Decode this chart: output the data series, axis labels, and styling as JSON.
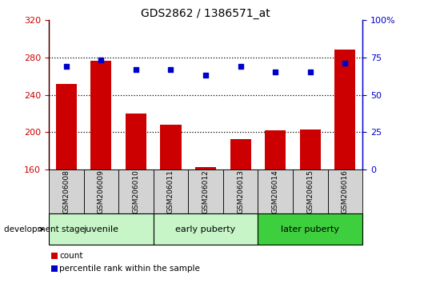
{
  "title": "GDS2862 / 1386571_at",
  "samples": [
    "GSM206008",
    "GSM206009",
    "GSM206010",
    "GSM206011",
    "GSM206012",
    "GSM206013",
    "GSM206014",
    "GSM206015",
    "GSM206016"
  ],
  "counts": [
    252,
    276,
    220,
    208,
    163,
    193,
    202,
    203,
    288
  ],
  "percentiles": [
    69,
    73,
    67,
    67,
    63,
    69,
    65,
    65,
    71
  ],
  "ylim_left": [
    160,
    320
  ],
  "ylim_right": [
    0,
    100
  ],
  "yticks_left": [
    160,
    200,
    240,
    280,
    320
  ],
  "yticks_right": [
    0,
    25,
    50,
    75,
    100
  ],
  "group_ranges": [
    {
      "label": "juvenile",
      "start": 0,
      "end": 2,
      "color": "#c8f5c8"
    },
    {
      "label": "early puberty",
      "start": 3,
      "end": 5,
      "color": "#c8f5c8"
    },
    {
      "label": "later puberty",
      "start": 6,
      "end": 8,
      "color": "#3ecf3e"
    }
  ],
  "bar_color": "#CC0000",
  "dot_color": "#0000CC",
  "tick_color_left": "#CC0000",
  "tick_color_right": "#0000CC",
  "sample_box_color": "#d3d3d3",
  "grid_color": "#000000",
  "grid_ticks": [
    200,
    240,
    280
  ],
  "dev_stage_label": "development stage",
  "legend_items": [
    {
      "color": "#CC0000",
      "label": "count"
    },
    {
      "color": "#0000CC",
      "label": "percentile rank within the sample"
    }
  ]
}
